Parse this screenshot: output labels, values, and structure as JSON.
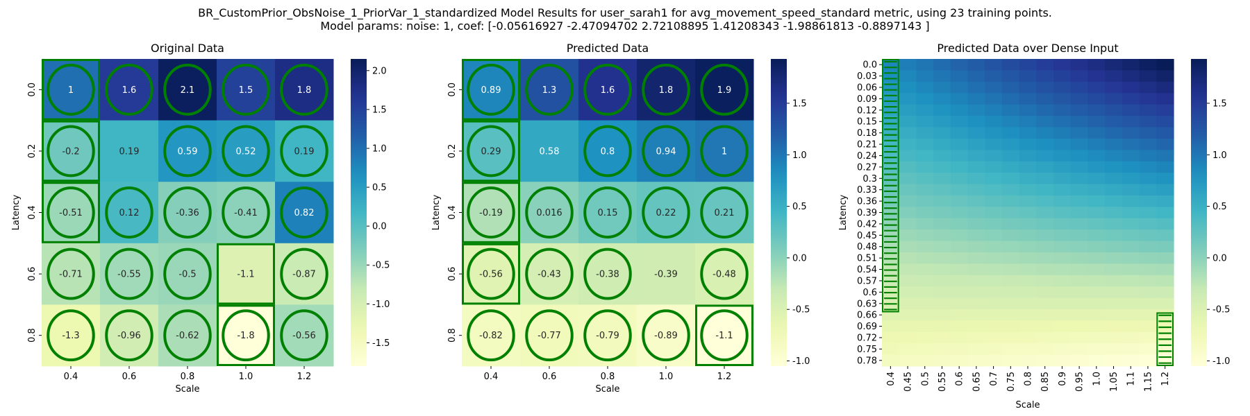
{
  "figure": {
    "suptitle_line1": "BR_CustomPrior_ObsNoise_1_PriorVar_1_standardized Model Results for user_sarah1 for avg_movement_speed_standard metric, using 23 training points.",
    "suptitle_line2": "Model params: noise: 1, coef: [-0.05616927 -2.47094702  2.72108895  1.41208343 -1.98861813 -0.8897143 ]"
  },
  "colormap": "YlGnBu",
  "marker_color": "#008000",
  "chart_data": [
    {
      "type": "heatmap",
      "title": "Original Data",
      "xlabel": "Scale",
      "ylabel": "Latency",
      "x_ticks": [
        "0.4",
        "0.6",
        "0.8",
        "1.0",
        "1.2"
      ],
      "y_ticks": [
        "0.0",
        "0.2",
        "0.4",
        "0.6",
        "0.8"
      ],
      "values": [
        [
          1.0,
          1.6,
          2.1,
          1.5,
          1.8
        ],
        [
          -0.2,
          0.19,
          0.59,
          0.52,
          0.19
        ],
        [
          -0.51,
          0.12,
          -0.36,
          -0.41,
          0.82
        ],
        [
          -0.71,
          -0.55,
          -0.5,
          -1.1,
          -0.87
        ],
        [
          -1.3,
          -0.96,
          -0.62,
          -1.8,
          -0.56
        ]
      ],
      "labels": [
        [
          "1",
          "1.6",
          "2.1",
          "1.5",
          "1.8"
        ],
        [
          "-0.2",
          "0.19",
          "0.59",
          "0.52",
          "0.19"
        ],
        [
          "-0.51",
          "0.12",
          "-0.36",
          "-0.41",
          "0.82"
        ],
        [
          "-0.71",
          "-0.55",
          "-0.5",
          "-1.1",
          "-0.87"
        ],
        [
          "-1.3",
          "-0.96",
          "-0.62",
          "-1.8",
          "-0.56"
        ]
      ],
      "vmin": -1.8,
      "vmax": 2.15,
      "colorbar_ticks": [
        "-1.5",
        "-1.0",
        "-0.5",
        "0.0",
        "0.5",
        "1.0",
        "1.5",
        "2.0"
      ],
      "colorbar_tick_values": [
        -1.5,
        -1.0,
        -0.5,
        0.0,
        0.5,
        1.0,
        1.5,
        2.0
      ],
      "circles": [
        [
          0,
          0
        ],
        [
          0,
          1
        ],
        [
          0,
          2
        ],
        [
          0,
          3
        ],
        [
          0,
          4
        ],
        [
          1,
          0
        ],
        [
          1,
          2
        ],
        [
          1,
          3
        ],
        [
          1,
          4
        ],
        [
          2,
          0
        ],
        [
          2,
          1
        ],
        [
          2,
          2
        ],
        [
          2,
          3
        ],
        [
          2,
          4
        ],
        [
          3,
          0
        ],
        [
          3,
          1
        ],
        [
          3,
          2
        ],
        [
          3,
          4
        ],
        [
          4,
          0
        ],
        [
          4,
          1
        ],
        [
          4,
          2
        ],
        [
          4,
          3
        ],
        [
          4,
          4
        ]
      ],
      "squares": [
        [
          0,
          0
        ],
        [
          1,
          0
        ],
        [
          2,
          0
        ],
        [
          3,
          3
        ],
        [
          4,
          3
        ]
      ]
    },
    {
      "type": "heatmap",
      "title": "Predicted Data",
      "xlabel": "Scale",
      "ylabel": "Latency",
      "x_ticks": [
        "0.4",
        "0.6",
        "0.8",
        "1.0",
        "1.2"
      ],
      "y_ticks": [
        "0.0",
        "0.2",
        "0.4",
        "0.6",
        "0.8"
      ],
      "values": [
        [
          0.89,
          1.3,
          1.6,
          1.8,
          1.9
        ],
        [
          0.29,
          0.58,
          0.8,
          0.94,
          1.0
        ],
        [
          -0.19,
          0.016,
          0.15,
          0.22,
          0.21
        ],
        [
          -0.56,
          -0.43,
          -0.38,
          -0.39,
          -0.48
        ],
        [
          -0.82,
          -0.77,
          -0.79,
          -0.89,
          -1.1
        ]
      ],
      "labels": [
        [
          "0.89",
          "1.3",
          "1.6",
          "1.8",
          "1.9"
        ],
        [
          "0.29",
          "0.58",
          "0.8",
          "0.94",
          "1"
        ],
        [
          "-0.19",
          "0.016",
          "0.15",
          "0.22",
          "0.21"
        ],
        [
          "-0.56",
          "-0.43",
          "-0.38",
          "-0.39",
          "-0.48"
        ],
        [
          "-0.82",
          "-0.77",
          "-0.79",
          "-0.89",
          "-1.1"
        ]
      ],
      "vmin": -1.05,
      "vmax": 1.93,
      "colorbar_ticks": [
        "-1.0",
        "-0.5",
        "0.0",
        "0.5",
        "1.0",
        "1.5"
      ],
      "colorbar_tick_values": [
        -1.0,
        -0.5,
        0.0,
        0.5,
        1.0,
        1.5
      ],
      "circles": [
        [
          0,
          0
        ],
        [
          0,
          1
        ],
        [
          0,
          2
        ],
        [
          0,
          3
        ],
        [
          0,
          4
        ],
        [
          1,
          0
        ],
        [
          1,
          2
        ],
        [
          1,
          3
        ],
        [
          1,
          4
        ],
        [
          2,
          0
        ],
        [
          2,
          1
        ],
        [
          2,
          2
        ],
        [
          2,
          3
        ],
        [
          2,
          4
        ],
        [
          3,
          0
        ],
        [
          3,
          1
        ],
        [
          3,
          2
        ],
        [
          3,
          4
        ],
        [
          4,
          0
        ],
        [
          4,
          1
        ],
        [
          4,
          2
        ],
        [
          4,
          3
        ],
        [
          4,
          4
        ]
      ],
      "squares": [
        [
          0,
          0
        ],
        [
          1,
          0
        ],
        [
          2,
          0
        ],
        [
          3,
          0
        ],
        [
          4,
          4
        ]
      ]
    },
    {
      "type": "heatmap",
      "title": "Predicted Data over Dense Input",
      "xlabel": "Scale",
      "ylabel": "Latency",
      "x_ticks": [
        "0.4",
        "0.45",
        "0.5",
        "0.55",
        "0.6",
        "0.65",
        "0.7",
        "0.75",
        "0.8",
        "0.85",
        "0.9",
        "0.95",
        "1.0",
        "1.05",
        "1.1",
        "1.15",
        "1.2"
      ],
      "y_ticks": [
        "0.0",
        "0.03",
        "0.06",
        "0.09",
        "0.12",
        "0.15",
        "0.18",
        "0.21",
        "0.24",
        "0.27",
        "0.3",
        "0.33",
        "0.36",
        "0.39",
        "0.42",
        "0.45",
        "0.48",
        "0.51",
        "0.54",
        "0.57",
        "0.6",
        "0.63",
        "0.66",
        "0.69",
        "0.72",
        "0.75",
        "0.78"
      ],
      "x_range": [
        0.4,
        1.2
      ],
      "y_range": [
        0.0,
        0.8
      ],
      "corner_values": {
        "top_left": 0.89,
        "top_right": 1.93,
        "bottom_left": -0.82,
        "bottom_right": -1.05
      },
      "vmin": -1.05,
      "vmax": 1.93,
      "colorbar_ticks": [
        "-1.0",
        "-0.5",
        "0.0",
        "0.5",
        "1.0",
        "1.5"
      ],
      "colorbar_tick_values": [
        -1.0,
        -0.5,
        0.0,
        0.5,
        1.0,
        1.5
      ],
      "highlight_strips": [
        {
          "scale": 0.4,
          "latency_from": 0.0,
          "latency_to": 0.66
        },
        {
          "scale": 1.2,
          "latency_from": 0.66,
          "latency_to": 0.8
        }
      ]
    }
  ]
}
